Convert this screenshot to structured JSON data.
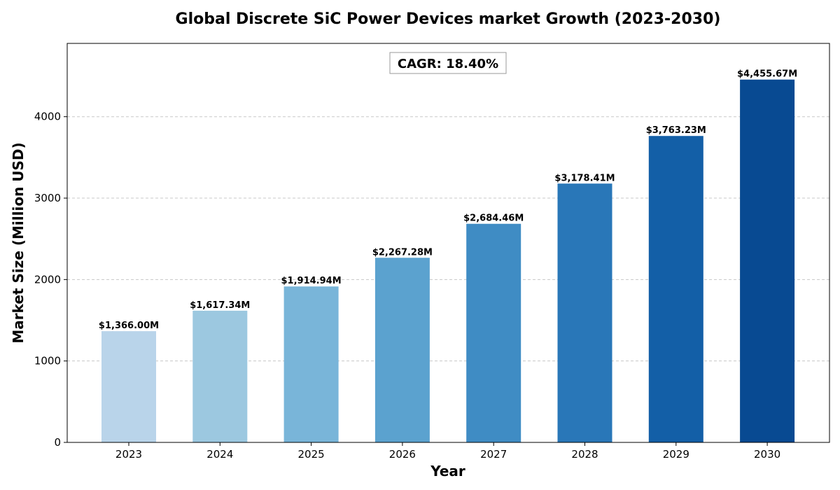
{
  "chart_data": {
    "type": "bar",
    "title": "Global Discrete SiC Power Devices market Growth (2023-2030)",
    "xlabel": "Year",
    "ylabel": "Market Size (Million USD)",
    "categories": [
      "2023",
      "2024",
      "2025",
      "2026",
      "2027",
      "2028",
      "2029",
      "2030"
    ],
    "values": [
      1366.0,
      1617.34,
      1914.94,
      2267.28,
      2684.46,
      3178.41,
      3763.23,
      4455.67
    ],
    "data_labels": [
      "$1,366.00M",
      "$1,617.34M",
      "$1,914.94M",
      "$2,267.28M",
      "$2,684.46M",
      "$3,178.41M",
      "$3,763.23M",
      "$4,455.67M"
    ],
    "bar_colors": [
      "#b9d4ea",
      "#9cc8e0",
      "#79b5d9",
      "#5ba2cf",
      "#3f8cc4",
      "#2977b8",
      "#135fa7",
      "#084a92"
    ],
    "ylim": [
      0,
      4900
    ],
    "yticks": [
      0,
      1000,
      2000,
      3000,
      4000
    ],
    "ytick_labels": [
      "0",
      "1000",
      "2000",
      "3000",
      "4000"
    ],
    "grid": true,
    "annotation": "CAGR: 18.40%"
  }
}
